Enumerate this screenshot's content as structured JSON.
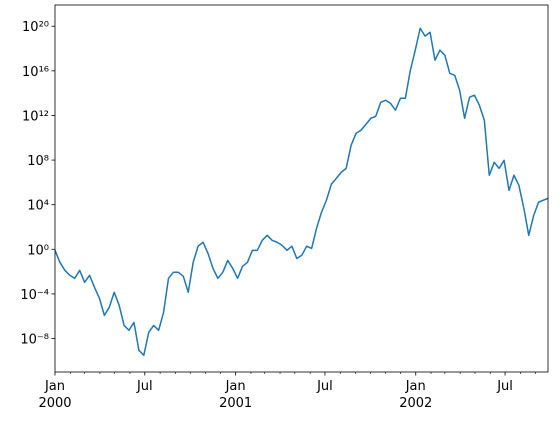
{
  "chart_data": {
    "type": "line",
    "log_y": true,
    "grid": false,
    "xlim": [
      "2000-01-01",
      "2002-09-26"
    ],
    "ylim": [
      1e-11,
      8e+21
    ],
    "yticks": [
      {
        "value": 1e-08,
        "label": "10⁻⁸"
      },
      {
        "value": 0.0001,
        "label": "10⁻⁴"
      },
      {
        "value": 1,
        "label": "10⁰"
      },
      {
        "value": 10000.0,
        "label": "10⁴"
      },
      {
        "value": 100000000.0,
        "label": "10⁸"
      },
      {
        "value": 1000000000000.0,
        "label": "10¹²"
      },
      {
        "value": 1e+16,
        "label": "10¹⁶"
      },
      {
        "value": 1e+20,
        "label": "10²⁰"
      }
    ],
    "xticks": [
      {
        "value": "2000-01-01",
        "label": [
          "Jan",
          "2000"
        ]
      },
      {
        "value": "2000-07-01",
        "label": [
          "Jul"
        ]
      },
      {
        "value": "2001-01-01",
        "label": [
          "Jan",
          "2001"
        ]
      },
      {
        "value": "2001-07-01",
        "label": [
          "Jul"
        ]
      },
      {
        "value": "2002-01-01",
        "label": [
          "Jan",
          "2002"
        ]
      },
      {
        "value": "2002-07-01",
        "label": [
          "Jul"
        ]
      }
    ],
    "xminorticks": [
      "2000-02-01",
      "2000-03-01",
      "2000-04-01",
      "2000-05-01",
      "2000-06-01",
      "2000-08-01",
      "2000-09-01",
      "2000-10-01",
      "2000-11-01",
      "2000-12-01",
      "2001-02-01",
      "2001-03-01",
      "2001-04-01",
      "2001-05-01",
      "2001-06-01",
      "2001-08-01",
      "2001-09-01",
      "2001-10-01",
      "2001-11-01",
      "2001-12-01",
      "2002-02-01",
      "2002-03-01",
      "2002-04-01",
      "2002-05-01",
      "2002-06-01",
      "2002-08-01",
      "2002-09-01"
    ],
    "x": [
      "2000-01-01",
      "2000-01-11",
      "2000-01-21",
      "2000-01-31",
      "2000-02-10",
      "2000-02-20",
      "2000-03-01",
      "2000-03-11",
      "2000-03-21",
      "2000-03-31",
      "2000-04-10",
      "2000-04-20",
      "2000-04-30",
      "2000-05-10",
      "2000-05-20",
      "2000-05-30",
      "2000-06-09",
      "2000-06-19",
      "2000-06-29",
      "2000-07-09",
      "2000-07-19",
      "2000-07-29",
      "2000-08-08",
      "2000-08-18",
      "2000-08-28",
      "2000-09-07",
      "2000-09-17",
      "2000-09-27",
      "2000-10-07",
      "2000-10-17",
      "2000-10-27",
      "2000-11-06",
      "2000-11-16",
      "2000-11-26",
      "2000-12-06",
      "2000-12-16",
      "2000-12-26",
      "2001-01-05",
      "2001-01-15",
      "2001-01-25",
      "2001-02-04",
      "2001-02-14",
      "2001-02-24",
      "2001-03-06",
      "2001-03-16",
      "2001-03-26",
      "2001-04-05",
      "2001-04-15",
      "2001-04-25",
      "2001-05-05",
      "2001-05-15",
      "2001-05-25",
      "2001-06-04",
      "2001-06-14",
      "2001-06-24",
      "2001-07-04",
      "2001-07-14",
      "2001-07-24",
      "2001-08-03",
      "2001-08-13",
      "2001-08-23",
      "2001-09-02",
      "2001-09-12",
      "2001-09-22",
      "2001-10-02",
      "2001-10-12",
      "2001-10-22",
      "2001-11-01",
      "2001-11-11",
      "2001-11-21",
      "2001-12-01",
      "2001-12-11",
      "2001-12-21",
      "2001-12-31",
      "2002-01-10",
      "2002-01-20",
      "2002-01-30",
      "2002-02-09",
      "2002-02-19",
      "2002-03-01",
      "2002-03-11",
      "2002-03-21",
      "2002-03-31",
      "2002-04-10",
      "2002-04-20",
      "2002-04-30",
      "2002-05-10",
      "2002-05-20",
      "2002-05-30",
      "2002-06-09",
      "2002-06-19",
      "2002-06-29",
      "2002-07-09",
      "2002-07-19",
      "2002-07-29",
      "2002-08-08",
      "2002-08-18",
      "2002-08-28",
      "2002-09-07",
      "2002-09-26"
    ],
    "series": [
      {
        "color": "#1f77b4",
        "values": [
          0.81,
          0.068,
          0.013,
          0.0047,
          0.0025,
          0.013,
          0.0011,
          0.0047,
          0.00039,
          4.1e-05,
          1.2e-06,
          6.3e-06,
          0.00014,
          9.5e-06,
          1.5e-07,
          5.5e-08,
          2.8e-07,
          8.7e-10,
          3.2e-10,
          3.6e-08,
          1.5e-07,
          5.5e-08,
          2.2e-06,
          0.0025,
          0.0087,
          0.0087,
          0.0038,
          0.00014,
          0.068,
          1.9,
          4.3,
          0.44,
          0.02,
          0.0025,
          0.0087,
          0.1,
          0.02,
          0.0025,
          0.03,
          0.068,
          0.81,
          0.81,
          6.4,
          18,
          6.4,
          4.3,
          2.3,
          0.81,
          1.9,
          0.15,
          0.29,
          1.9,
          1.2,
          76,
          2100,
          25000.0,
          680000.0,
          2300000.0,
          8100000.0,
          18000000.0,
          2100000000.0,
          25000000000.0,
          47000000000.0,
          160000000000.0,
          560000000000.0,
          850000000000.0,
          15000000000000.0,
          23000000000000.0,
          12000000000000.0,
          3000000000000.0,
          35000000000000.0,
          35000000000000.0,
          1.1e+16,
          7.1e+17,
          6.6e+19,
          1.3e+19,
          2.9e+19,
          8.9e+16,
          7.1e+17,
          2.5e+17,
          6000000000000000.0,
          4000000000000000.0,
          180000000000000.0,
          560000000000.0,
          43000000000000.0,
          65000000000000.0,
          8100000000000.0,
          370000000000.0,
          4400000.0,
          63000000.0,
          18000000.0,
          95000000.0,
          190000.0,
          4400000.0,
          550000.0,
          4800,
          18,
          1100,
          17000.0,
          37000.0
        ]
      }
    ]
  }
}
